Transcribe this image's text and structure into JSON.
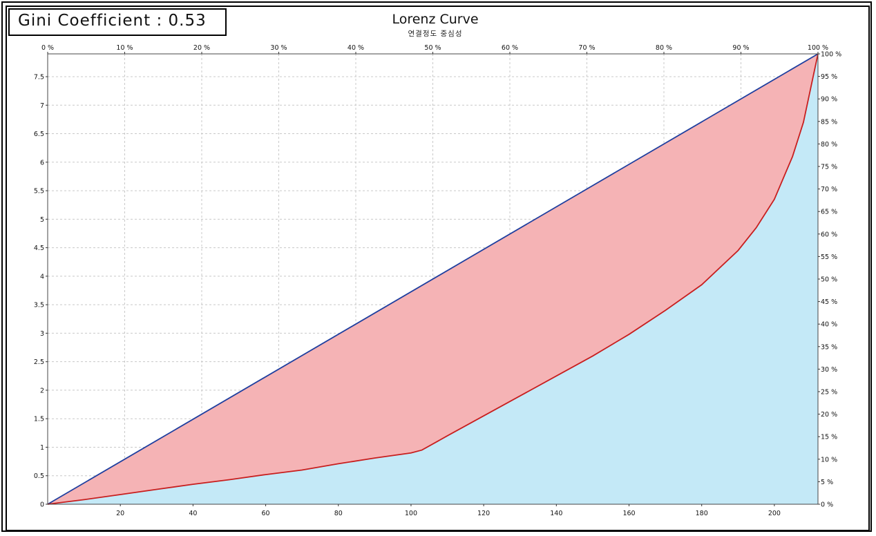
{
  "header": {
    "gini_label": "Gini Coefficient : 0.53"
  },
  "chart_data": {
    "type": "area",
    "title": "Lorenz Curve",
    "subtitle": "연결정도 중심성",
    "xlabel": "",
    "ylabel": "",
    "xlim": [
      0,
      212
    ],
    "ylim": [
      0,
      7.9
    ],
    "x_ticks": [
      20,
      40,
      60,
      80,
      100,
      120,
      140,
      160,
      180,
      200
    ],
    "y_ticks": [
      0,
      0.5,
      1,
      1.5,
      2,
      2.5,
      3,
      3.5,
      4,
      4.5,
      5,
      5.5,
      6,
      6.5,
      7,
      7.5
    ],
    "top_ticks": [
      "0 %",
      "10 %",
      "20 %",
      "30 %",
      "40 %",
      "50 %",
      "60 %",
      "70 %",
      "80 %",
      "90 %",
      "100 %"
    ],
    "right_ticks": [
      "0 %",
      "5 %",
      "10 %",
      "15 %",
      "20 %",
      "25 %",
      "30 %",
      "35 %",
      "40 %",
      "45 %",
      "50 %",
      "55 %",
      "60 %",
      "65 %",
      "70 %",
      "75 %",
      "80 %",
      "85 %",
      "90 %",
      "95 %",
      "100 %"
    ],
    "grid": true,
    "colors": {
      "equality_line": "#1f3f9f",
      "lorenz_line": "#c81e1e",
      "inequality_area": "#f5b3b5",
      "below_curve_area": "#c4e9f7",
      "grid": "#c8c8c8"
    },
    "series": [
      {
        "kind": "equality",
        "x": [
          0,
          212
        ],
        "y": [
          0,
          7.9
        ]
      },
      {
        "kind": "lorenz",
        "x": [
          0,
          10,
          20,
          30,
          40,
          50,
          60,
          70,
          80,
          90,
          100,
          103,
          110,
          120,
          130,
          140,
          150,
          160,
          170,
          180,
          190,
          195,
          200,
          205,
          208,
          210,
          212
        ],
        "y": [
          0,
          0.08,
          0.17,
          0.26,
          0.35,
          0.43,
          0.52,
          0.6,
          0.71,
          0.81,
          0.9,
          0.95,
          1.2,
          1.55,
          1.9,
          2.25,
          2.6,
          2.98,
          3.4,
          3.85,
          4.45,
          4.85,
          5.35,
          6.1,
          6.7,
          7.3,
          7.9
        ]
      }
    ]
  }
}
